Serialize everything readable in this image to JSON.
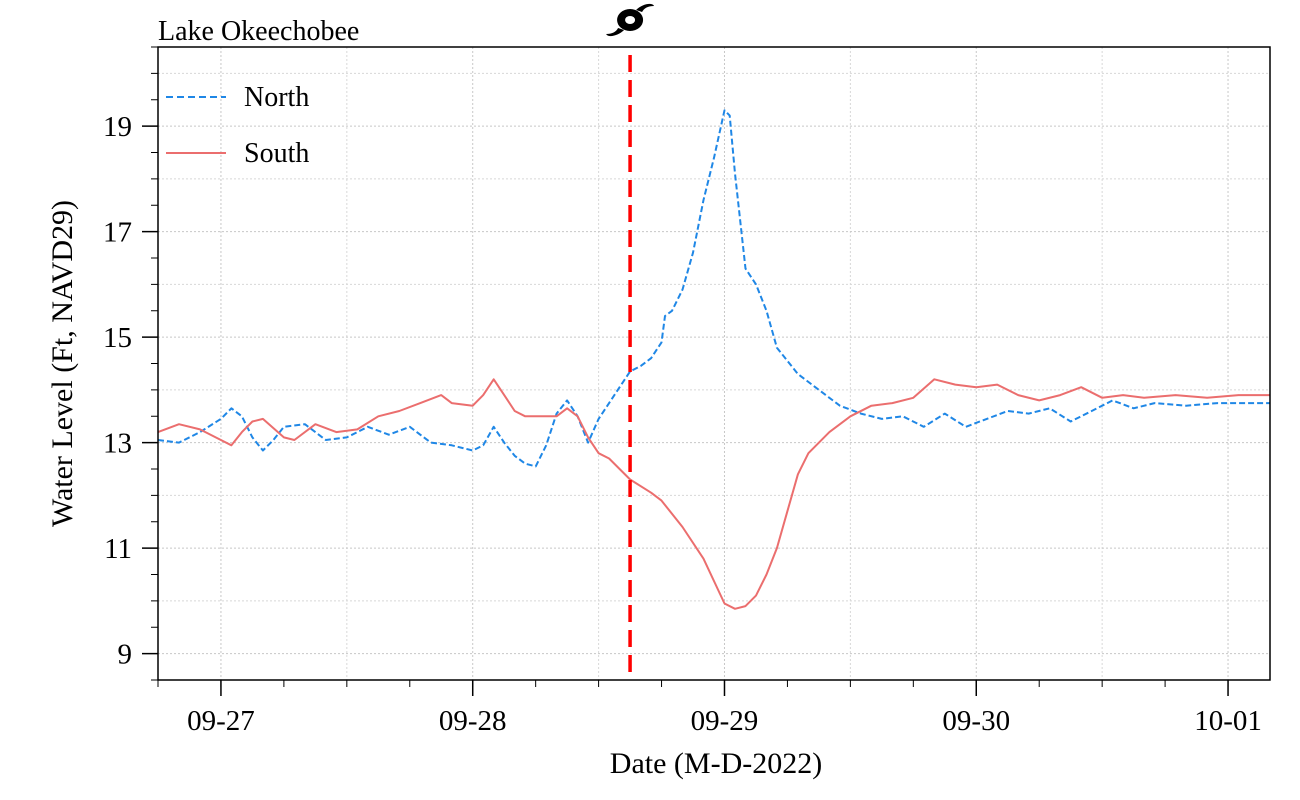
{
  "chart_data": {
    "type": "line",
    "title": "Lake Okeechobee",
    "xlabel": "Date (M-D-2022)",
    "ylabel": "Water Level (Ft, NAVD29)",
    "xlim": [
      "2022-09-26T18:00",
      "2022-10-01T04:00"
    ],
    "ylim": [
      8.5,
      20.5
    ],
    "x_ticks": [
      {
        "date": "2022-09-27T00:00",
        "label": "09-27"
      },
      {
        "date": "2022-09-28T00:00",
        "label": "09-28"
      },
      {
        "date": "2022-09-29T00:00",
        "label": "09-29"
      },
      {
        "date": "2022-09-30T00:00",
        "label": "09-30"
      },
      {
        "date": "2022-10-01T00:00",
        "label": "10-01"
      }
    ],
    "y_ticks": [
      9,
      11,
      13,
      15,
      17,
      19
    ],
    "grid": true,
    "legend_position": "top-left",
    "event_marker": {
      "date": "2022-09-28T15:00",
      "icon": "hurricane-icon",
      "color": "#ff0000"
    },
    "series": [
      {
        "name": "North",
        "color": "#1f87e6",
        "style": "dashed",
        "points": [
          [
            "2022-09-26T18:00",
            13.05
          ],
          [
            "2022-09-26T20:00",
            13.0
          ],
          [
            "2022-09-26T22:00",
            13.2
          ],
          [
            "2022-09-27T00:00",
            13.45
          ],
          [
            "2022-09-27T01:00",
            13.65
          ],
          [
            "2022-09-27T02:00",
            13.5
          ],
          [
            "2022-09-27T03:00",
            13.1
          ],
          [
            "2022-09-27T04:00",
            12.85
          ],
          [
            "2022-09-27T05:00",
            13.05
          ],
          [
            "2022-09-27T06:00",
            13.3
          ],
          [
            "2022-09-27T08:00",
            13.35
          ],
          [
            "2022-09-27T10:00",
            13.05
          ],
          [
            "2022-09-27T12:00",
            13.1
          ],
          [
            "2022-09-27T14:00",
            13.3
          ],
          [
            "2022-09-27T16:00",
            13.15
          ],
          [
            "2022-09-27T18:00",
            13.3
          ],
          [
            "2022-09-27T20:00",
            13.0
          ],
          [
            "2022-09-27T22:00",
            12.95
          ],
          [
            "2022-09-28T00:00",
            12.85
          ],
          [
            "2022-09-28T01:00",
            12.95
          ],
          [
            "2022-09-28T02:00",
            13.3
          ],
          [
            "2022-09-28T03:00",
            13.0
          ],
          [
            "2022-09-28T04:00",
            12.75
          ],
          [
            "2022-09-28T05:00",
            12.6
          ],
          [
            "2022-09-28T06:00",
            12.55
          ],
          [
            "2022-09-28T07:00",
            12.95
          ],
          [
            "2022-09-28T08:00",
            13.55
          ],
          [
            "2022-09-28T09:00",
            13.8
          ],
          [
            "2022-09-28T10:00",
            13.5
          ],
          [
            "2022-09-28T11:00",
            13.0
          ],
          [
            "2022-09-28T12:00",
            13.45
          ],
          [
            "2022-09-28T13:00",
            13.75
          ],
          [
            "2022-09-28T14:00",
            14.05
          ],
          [
            "2022-09-28T15:00",
            14.35
          ],
          [
            "2022-09-28T16:00",
            14.45
          ],
          [
            "2022-09-28T17:00",
            14.6
          ],
          [
            "2022-09-28T18:00",
            14.9
          ],
          [
            "2022-09-28T18:20",
            15.4
          ],
          [
            "2022-09-28T19:00",
            15.5
          ],
          [
            "2022-09-28T20:00",
            15.9
          ],
          [
            "2022-09-28T21:00",
            16.6
          ],
          [
            "2022-09-28T22:00",
            17.6
          ],
          [
            "2022-09-28T23:00",
            18.4
          ],
          [
            "2022-09-29T00:00",
            19.3
          ],
          [
            "2022-09-29T00:30",
            19.2
          ],
          [
            "2022-09-29T01:00",
            18.1
          ],
          [
            "2022-09-29T02:00",
            16.3
          ],
          [
            "2022-09-29T03:00",
            16.0
          ],
          [
            "2022-09-29T04:00",
            15.5
          ],
          [
            "2022-09-29T05:00",
            14.8
          ],
          [
            "2022-09-29T07:00",
            14.3
          ],
          [
            "2022-09-29T09:00",
            14.0
          ],
          [
            "2022-09-29T11:00",
            13.7
          ],
          [
            "2022-09-29T13:00",
            13.55
          ],
          [
            "2022-09-29T15:00",
            13.45
          ],
          [
            "2022-09-29T17:00",
            13.5
          ],
          [
            "2022-09-29T19:00",
            13.3
          ],
          [
            "2022-09-29T21:00",
            13.55
          ],
          [
            "2022-09-29T23:00",
            13.3
          ],
          [
            "2022-09-30T01:00",
            13.45
          ],
          [
            "2022-09-30T03:00",
            13.6
          ],
          [
            "2022-09-30T05:00",
            13.55
          ],
          [
            "2022-09-30T07:00",
            13.65
          ],
          [
            "2022-09-30T09:00",
            13.4
          ],
          [
            "2022-09-30T11:00",
            13.6
          ],
          [
            "2022-09-30T13:00",
            13.8
          ],
          [
            "2022-09-30T15:00",
            13.65
          ],
          [
            "2022-09-30T17:00",
            13.75
          ],
          [
            "2022-09-30T20:00",
            13.7
          ],
          [
            "2022-09-30T23:00",
            13.75
          ],
          [
            "2022-10-01T02:00",
            13.75
          ],
          [
            "2022-10-01T04:00",
            13.75
          ]
        ]
      },
      {
        "name": "South",
        "color": "#eb6e6e",
        "style": "solid",
        "points": [
          [
            "2022-09-26T18:00",
            13.2
          ],
          [
            "2022-09-26T20:00",
            13.35
          ],
          [
            "2022-09-26T22:00",
            13.25
          ],
          [
            "2022-09-27T00:00",
            13.05
          ],
          [
            "2022-09-27T01:00",
            12.95
          ],
          [
            "2022-09-27T02:00",
            13.2
          ],
          [
            "2022-09-27T03:00",
            13.4
          ],
          [
            "2022-09-27T04:00",
            13.45
          ],
          [
            "2022-09-27T06:00",
            13.1
          ],
          [
            "2022-09-27T07:00",
            13.05
          ],
          [
            "2022-09-27T09:00",
            13.35
          ],
          [
            "2022-09-27T11:00",
            13.2
          ],
          [
            "2022-09-27T13:00",
            13.25
          ],
          [
            "2022-09-27T15:00",
            13.5
          ],
          [
            "2022-09-27T17:00",
            13.6
          ],
          [
            "2022-09-27T19:00",
            13.75
          ],
          [
            "2022-09-27T21:00",
            13.9
          ],
          [
            "2022-09-27T22:00",
            13.75
          ],
          [
            "2022-09-28T00:00",
            13.7
          ],
          [
            "2022-09-28T01:00",
            13.9
          ],
          [
            "2022-09-28T02:00",
            14.2
          ],
          [
            "2022-09-28T03:00",
            13.9
          ],
          [
            "2022-09-28T04:00",
            13.6
          ],
          [
            "2022-09-28T05:00",
            13.5
          ],
          [
            "2022-09-28T06:00",
            13.5
          ],
          [
            "2022-09-28T08:00",
            13.5
          ],
          [
            "2022-09-28T09:00",
            13.65
          ],
          [
            "2022-09-28T10:00",
            13.5
          ],
          [
            "2022-09-28T11:00",
            13.1
          ],
          [
            "2022-09-28T12:00",
            12.8
          ],
          [
            "2022-09-28T13:00",
            12.7
          ],
          [
            "2022-09-28T14:00",
            12.5
          ],
          [
            "2022-09-28T15:00",
            12.3
          ],
          [
            "2022-09-28T17:00",
            12.05
          ],
          [
            "2022-09-28T18:00",
            11.9
          ],
          [
            "2022-09-28T20:00",
            11.4
          ],
          [
            "2022-09-28T22:00",
            10.8
          ],
          [
            "2022-09-29T00:00",
            9.95
          ],
          [
            "2022-09-29T01:00",
            9.85
          ],
          [
            "2022-09-29T02:00",
            9.9
          ],
          [
            "2022-09-29T03:00",
            10.1
          ],
          [
            "2022-09-29T04:00",
            10.5
          ],
          [
            "2022-09-29T05:00",
            11.0
          ],
          [
            "2022-09-29T06:00",
            11.7
          ],
          [
            "2022-09-29T07:00",
            12.4
          ],
          [
            "2022-09-29T08:00",
            12.8
          ],
          [
            "2022-09-29T10:00",
            13.2
          ],
          [
            "2022-09-29T12:00",
            13.5
          ],
          [
            "2022-09-29T14:00",
            13.7
          ],
          [
            "2022-09-29T16:00",
            13.75
          ],
          [
            "2022-09-29T18:00",
            13.85
          ],
          [
            "2022-09-29T20:00",
            14.2
          ],
          [
            "2022-09-29T22:00",
            14.1
          ],
          [
            "2022-09-30T00:00",
            14.05
          ],
          [
            "2022-09-30T02:00",
            14.1
          ],
          [
            "2022-09-30T04:00",
            13.9
          ],
          [
            "2022-09-30T06:00",
            13.8
          ],
          [
            "2022-09-30T08:00",
            13.9
          ],
          [
            "2022-09-30T10:00",
            14.05
          ],
          [
            "2022-09-30T12:00",
            13.85
          ],
          [
            "2022-09-30T14:00",
            13.9
          ],
          [
            "2022-09-30T16:00",
            13.85
          ],
          [
            "2022-09-30T19:00",
            13.9
          ],
          [
            "2022-09-30T22:00",
            13.85
          ],
          [
            "2022-10-01T01:00",
            13.9
          ],
          [
            "2022-10-01T04:00",
            13.9
          ]
        ]
      }
    ]
  }
}
